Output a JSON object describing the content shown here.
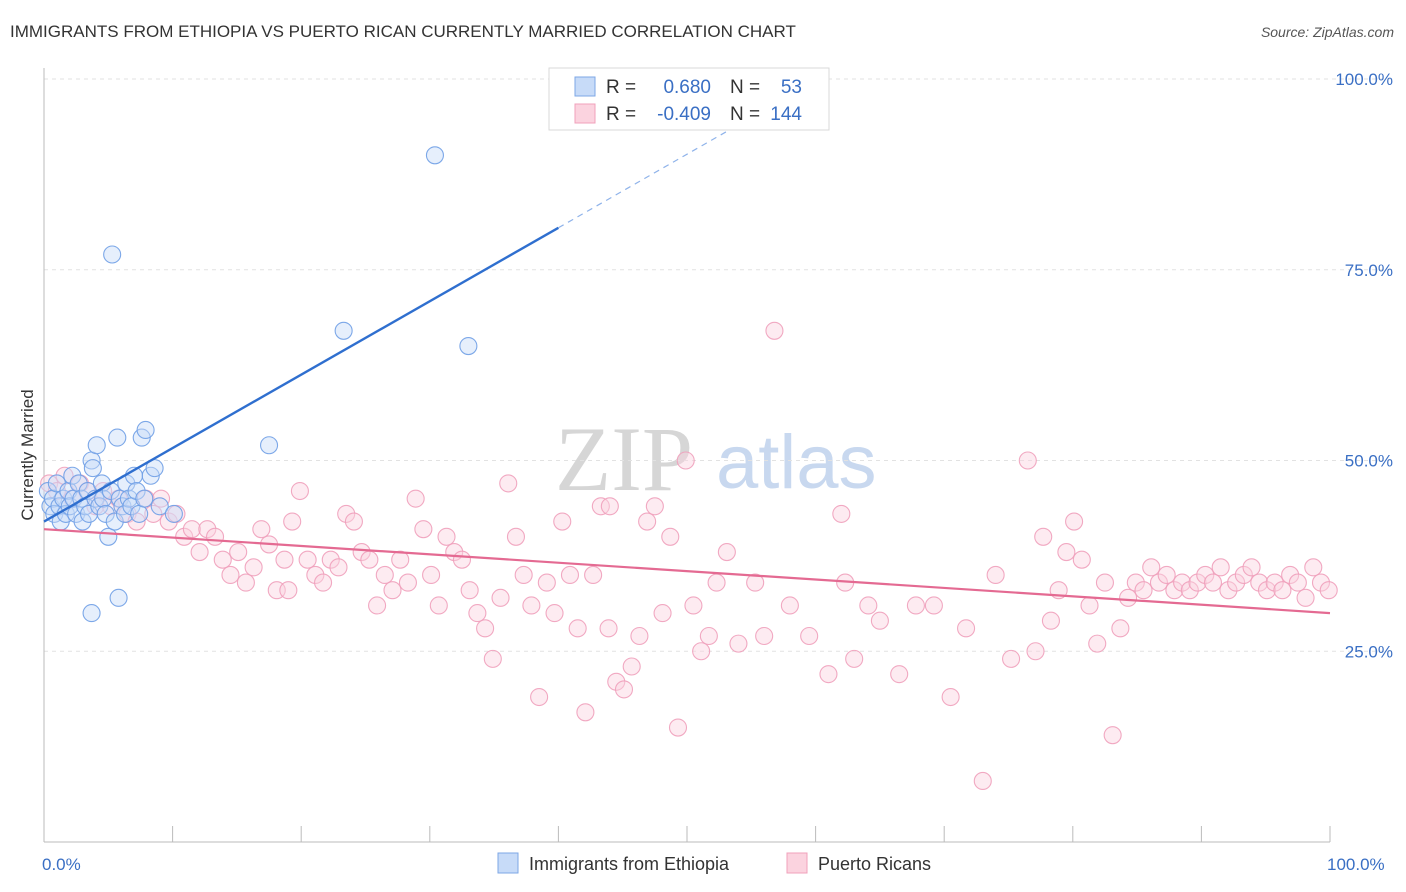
{
  "title": "IMMIGRANTS FROM ETHIOPIA VS PUERTO RICAN CURRENTLY MARRIED CORRELATION CHART",
  "source": "Source: ZipAtlas.com",
  "watermark": {
    "zip": "ZIP",
    "atlas": "atlas"
  },
  "colors": {
    "blue": "#5b8fe0",
    "blue_line": "#2f6fcf",
    "pink": "#f08aa8",
    "pink_line": "#e46a92"
  },
  "chart_data": {
    "type": "scatter",
    "ylabel": "Currently Married",
    "xlim": [
      0,
      100
    ],
    "ylim": [
      0,
      100
    ],
    "x_tick_labels": [
      "0.0%",
      "100.0%"
    ],
    "y_tick_labels": [
      "25.0%",
      "50.0%",
      "75.0%",
      "100.0%"
    ],
    "legend": {
      "rows": [
        {
          "r_label": "R =",
          "r_value": "0.680",
          "n_label": "N =",
          "n_value": "53"
        },
        {
          "r_label": "R =",
          "r_value": "-0.409",
          "n_label": "N =",
          "n_value": "144"
        }
      ]
    },
    "series": [
      {
        "name": "Immigrants from Ethiopia",
        "color": "#5b8fe0",
        "trend": {
          "x0": 0,
          "y0": 42.0,
          "x1": 40,
          "y1": 80.5,
          "dash_x1": 54,
          "dash_y1": 94.0
        },
        "points": [
          [
            0.3,
            46
          ],
          [
            0.5,
            44
          ],
          [
            0.7,
            45
          ],
          [
            0.8,
            43
          ],
          [
            1.0,
            47
          ],
          [
            1.2,
            44
          ],
          [
            1.3,
            42
          ],
          [
            1.5,
            45
          ],
          [
            1.7,
            43
          ],
          [
            1.9,
            46
          ],
          [
            2.0,
            44
          ],
          [
            2.2,
            48
          ],
          [
            2.3,
            45
          ],
          [
            2.5,
            43
          ],
          [
            2.7,
            47
          ],
          [
            2.9,
            45
          ],
          [
            3.0,
            42
          ],
          [
            3.2,
            44
          ],
          [
            3.4,
            46
          ],
          [
            3.5,
            43
          ],
          [
            3.7,
            50
          ],
          [
            3.8,
            49
          ],
          [
            4.0,
            45
          ],
          [
            4.1,
            52
          ],
          [
            4.3,
            44
          ],
          [
            4.5,
            47
          ],
          [
            4.6,
            45
          ],
          [
            4.8,
            43
          ],
          [
            5.0,
            40
          ],
          [
            5.2,
            46
          ],
          [
            5.3,
            77
          ],
          [
            5.5,
            42
          ],
          [
            5.7,
            53
          ],
          [
            5.9,
            45
          ],
          [
            6.1,
            44
          ],
          [
            6.3,
            43
          ],
          [
            6.4,
            47
          ],
          [
            6.6,
            45
          ],
          [
            6.8,
            44
          ],
          [
            7.0,
            48
          ],
          [
            7.2,
            46
          ],
          [
            7.4,
            43
          ],
          [
            7.6,
            53
          ],
          [
            7.8,
            45
          ],
          [
            7.9,
            54
          ],
          [
            8.3,
            48
          ],
          [
            8.6,
            49
          ],
          [
            9.0,
            44
          ],
          [
            10.1,
            43
          ],
          [
            17.5,
            52
          ],
          [
            23.3,
            67
          ],
          [
            30.4,
            90
          ],
          [
            33.0,
            65
          ],
          [
            3.7,
            30
          ],
          [
            5.8,
            32
          ]
        ]
      },
      {
        "name": "Puerto Ricans",
        "color": "#f08aa8",
        "trend": {
          "x0": 0,
          "y0": 41.0,
          "x1": 100,
          "y1": 30.0
        },
        "points": [
          [
            0.4,
            47
          ],
          [
            1.0,
            46
          ],
          [
            1.6,
            48
          ],
          [
            2.2,
            45
          ],
          [
            2.8,
            47
          ],
          [
            3.4,
            46
          ],
          [
            4.0,
            44
          ],
          [
            4.6,
            46
          ],
          [
            5.2,
            44
          ],
          [
            5.8,
            45
          ],
          [
            6.5,
            43
          ],
          [
            7.2,
            42
          ],
          [
            7.9,
            45
          ],
          [
            8.5,
            43
          ],
          [
            9.1,
            45
          ],
          [
            9.7,
            42
          ],
          [
            10.3,
            43
          ],
          [
            10.9,
            40
          ],
          [
            11.5,
            41
          ],
          [
            12.1,
            38
          ],
          [
            12.7,
            41
          ],
          [
            13.3,
            40
          ],
          [
            13.9,
            37
          ],
          [
            14.5,
            35
          ],
          [
            15.1,
            38
          ],
          [
            15.7,
            34
          ],
          [
            16.3,
            36
          ],
          [
            16.9,
            41
          ],
          [
            17.5,
            39
          ],
          [
            18.1,
            33
          ],
          [
            18.7,
            37
          ],
          [
            19.3,
            42
          ],
          [
            19.9,
            46
          ],
          [
            20.5,
            37
          ],
          [
            21.1,
            35
          ],
          [
            21.7,
            34
          ],
          [
            22.3,
            37
          ],
          [
            22.9,
            36
          ],
          [
            23.5,
            43
          ],
          [
            24.1,
            42
          ],
          [
            24.7,
            38
          ],
          [
            25.3,
            37
          ],
          [
            25.9,
            31
          ],
          [
            26.5,
            35
          ],
          [
            27.1,
            33
          ],
          [
            27.7,
            37
          ],
          [
            28.3,
            34
          ],
          [
            28.9,
            45
          ],
          [
            29.5,
            41
          ],
          [
            30.1,
            35
          ],
          [
            30.7,
            31
          ],
          [
            31.3,
            40
          ],
          [
            31.9,
            38
          ],
          [
            32.5,
            37
          ],
          [
            33.1,
            33
          ],
          [
            33.7,
            30
          ],
          [
            34.3,
            28
          ],
          [
            34.9,
            24
          ],
          [
            35.5,
            32
          ],
          [
            36.1,
            47
          ],
          [
            36.7,
            40
          ],
          [
            37.3,
            35
          ],
          [
            37.9,
            31
          ],
          [
            38.5,
            19
          ],
          [
            39.1,
            34
          ],
          [
            39.7,
            30
          ],
          [
            40.3,
            42
          ],
          [
            40.9,
            35
          ],
          [
            41.5,
            28
          ],
          [
            42.1,
            17
          ],
          [
            42.7,
            35
          ],
          [
            43.3,
            44
          ],
          [
            43.9,
            28
          ],
          [
            44.5,
            21
          ],
          [
            45.1,
            20
          ],
          [
            45.7,
            23
          ],
          [
            46.3,
            27
          ],
          [
            46.9,
            42
          ],
          [
            47.5,
            44
          ],
          [
            48.1,
            30
          ],
          [
            48.7,
            40
          ],
          [
            49.3,
            15
          ],
          [
            49.9,
            50
          ],
          [
            50.5,
            31
          ],
          [
            51.1,
            25
          ],
          [
            51.7,
            27
          ],
          [
            52.3,
            34
          ],
          [
            53.1,
            38
          ],
          [
            54.0,
            26
          ],
          [
            55.3,
            34
          ],
          [
            56.0,
            27
          ],
          [
            56.8,
            67
          ],
          [
            58.0,
            31
          ],
          [
            59.5,
            27
          ],
          [
            61.0,
            22
          ],
          [
            62.3,
            34
          ],
          [
            63.0,
            24
          ],
          [
            64.1,
            31
          ],
          [
            65.0,
            29
          ],
          [
            66.5,
            22
          ],
          [
            67.8,
            31
          ],
          [
            69.2,
            31
          ],
          [
            70.5,
            19
          ],
          [
            71.7,
            28
          ],
          [
            73.0,
            8
          ],
          [
            74.0,
            35
          ],
          [
            75.2,
            24
          ],
          [
            76.5,
            50
          ],
          [
            77.1,
            25
          ],
          [
            77.7,
            40
          ],
          [
            78.3,
            29
          ],
          [
            78.9,
            33
          ],
          [
            79.5,
            38
          ],
          [
            80.1,
            42
          ],
          [
            80.7,
            37
          ],
          [
            81.3,
            31
          ],
          [
            81.9,
            26
          ],
          [
            82.5,
            34
          ],
          [
            83.1,
            14
          ],
          [
            83.7,
            28
          ],
          [
            84.3,
            32
          ],
          [
            84.9,
            34
          ],
          [
            85.5,
            33
          ],
          [
            86.1,
            36
          ],
          [
            86.7,
            34
          ],
          [
            87.3,
            35
          ],
          [
            87.9,
            33
          ],
          [
            88.5,
            34
          ],
          [
            89.1,
            33
          ],
          [
            89.7,
            34
          ],
          [
            90.3,
            35
          ],
          [
            90.9,
            34
          ],
          [
            91.5,
            36
          ],
          [
            92.1,
            33
          ],
          [
            92.7,
            34
          ],
          [
            93.3,
            35
          ],
          [
            93.9,
            36
          ],
          [
            94.5,
            34
          ],
          [
            95.1,
            33
          ],
          [
            95.7,
            34
          ],
          [
            96.3,
            33
          ],
          [
            96.9,
            35
          ],
          [
            97.5,
            34
          ],
          [
            98.1,
            32
          ],
          [
            98.7,
            36
          ],
          [
            99.3,
            34
          ],
          [
            99.9,
            33
          ],
          [
            19.0,
            33
          ],
          [
            44.0,
            44
          ],
          [
            62.0,
            43
          ]
        ]
      }
    ]
  }
}
